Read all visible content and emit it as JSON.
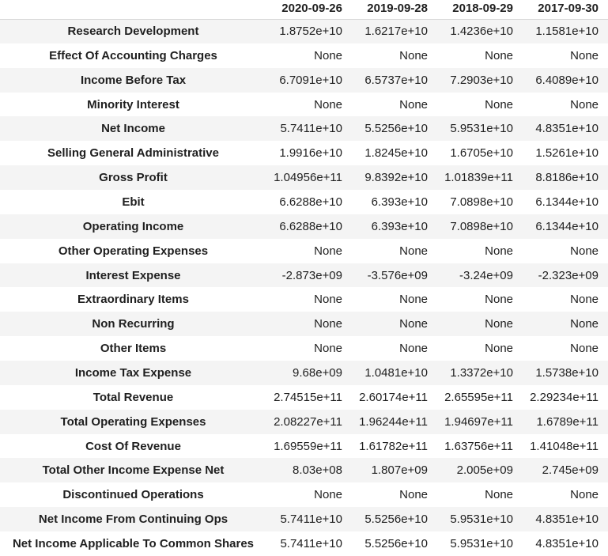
{
  "style": {
    "stripe_color": "#f4f4f4",
    "header_border_color": "#d9d9d9",
    "text_color": "#1f1f1f",
    "background_color": "#ffffff"
  },
  "chart_data": {
    "type": "table",
    "title": "",
    "corner_label": "",
    "columns": [
      "2020-09-26",
      "2019-09-28",
      "2018-09-29",
      "2017-09-30"
    ],
    "rows": [
      {
        "label": "Research Development",
        "values": [
          "1.8752e+10",
          "1.6217e+10",
          "1.4236e+10",
          "1.1581e+10"
        ]
      },
      {
        "label": "Effect Of Accounting Charges",
        "values": [
          "None",
          "None",
          "None",
          "None"
        ]
      },
      {
        "label": "Income Before Tax",
        "values": [
          "6.7091e+10",
          "6.5737e+10",
          "7.2903e+10",
          "6.4089e+10"
        ]
      },
      {
        "label": "Minority Interest",
        "values": [
          "None",
          "None",
          "None",
          "None"
        ]
      },
      {
        "label": "Net Income",
        "values": [
          "5.7411e+10",
          "5.5256e+10",
          "5.9531e+10",
          "4.8351e+10"
        ]
      },
      {
        "label": "Selling General Administrative",
        "values": [
          "1.9916e+10",
          "1.8245e+10",
          "1.6705e+10",
          "1.5261e+10"
        ]
      },
      {
        "label": "Gross Profit",
        "values": [
          "1.04956e+11",
          "9.8392e+10",
          "1.01839e+11",
          "8.8186e+10"
        ]
      },
      {
        "label": "Ebit",
        "values": [
          "6.6288e+10",
          "6.393e+10",
          "7.0898e+10",
          "6.1344e+10"
        ]
      },
      {
        "label": "Operating Income",
        "values": [
          "6.6288e+10",
          "6.393e+10",
          "7.0898e+10",
          "6.1344e+10"
        ]
      },
      {
        "label": "Other Operating Expenses",
        "values": [
          "None",
          "None",
          "None",
          "None"
        ]
      },
      {
        "label": "Interest Expense",
        "values": [
          "-2.873e+09",
          "-3.576e+09",
          "-3.24e+09",
          "-2.323e+09"
        ]
      },
      {
        "label": "Extraordinary Items",
        "values": [
          "None",
          "None",
          "None",
          "None"
        ]
      },
      {
        "label": "Non Recurring",
        "values": [
          "None",
          "None",
          "None",
          "None"
        ]
      },
      {
        "label": "Other Items",
        "values": [
          "None",
          "None",
          "None",
          "None"
        ]
      },
      {
        "label": "Income Tax Expense",
        "values": [
          "9.68e+09",
          "1.0481e+10",
          "1.3372e+10",
          "1.5738e+10"
        ]
      },
      {
        "label": "Total Revenue",
        "values": [
          "2.74515e+11",
          "2.60174e+11",
          "2.65595e+11",
          "2.29234e+11"
        ]
      },
      {
        "label": "Total Operating Expenses",
        "values": [
          "2.08227e+11",
          "1.96244e+11",
          "1.94697e+11",
          "1.6789e+11"
        ]
      },
      {
        "label": "Cost Of Revenue",
        "values": [
          "1.69559e+11",
          "1.61782e+11",
          "1.63756e+11",
          "1.41048e+11"
        ]
      },
      {
        "label": "Total Other Income Expense Net",
        "values": [
          "8.03e+08",
          "1.807e+09",
          "2.005e+09",
          "2.745e+09"
        ]
      },
      {
        "label": "Discontinued Operations",
        "values": [
          "None",
          "None",
          "None",
          "None"
        ]
      },
      {
        "label": "Net Income From Continuing Ops",
        "values": [
          "5.7411e+10",
          "5.5256e+10",
          "5.9531e+10",
          "4.8351e+10"
        ]
      },
      {
        "label": "Net Income Applicable To Common Shares",
        "values": [
          "5.7411e+10",
          "5.5256e+10",
          "5.9531e+10",
          "4.8351e+10"
        ]
      }
    ]
  }
}
